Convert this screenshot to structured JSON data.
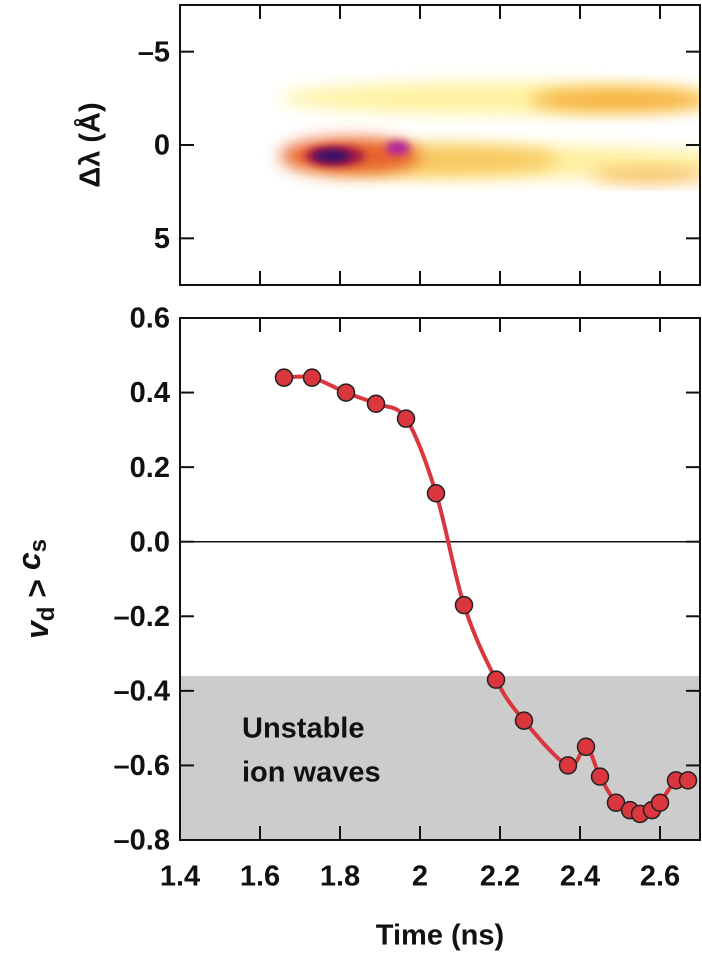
{
  "chart_data": [
    {
      "type": "heatmap",
      "ylabel": "Δλ (Å)",
      "xlim": [
        1.4,
        2.7
      ],
      "xticks": [
        1.4,
        1.6,
        1.8,
        2.0,
        2.2,
        2.4,
        2.6
      ],
      "xtick_labels": false,
      "ylim": [
        -7.5,
        7.5
      ],
      "y_inverted": true,
      "yticks": [
        {
          "value": -5,
          "label": "–5"
        },
        0,
        5
      ]
    },
    {
      "type": "line",
      "xlabel": "Time (ns)",
      "ylabel_parts": [
        "v",
        "d",
        " > ",
        "c",
        "s"
      ],
      "xlim": [
        1.4,
        2.7
      ],
      "xticks": [
        1.4,
        1.6,
        1.8,
        2.0,
        2.2,
        2.4,
        2.6
      ],
      "xtick_labels": true,
      "ylim": [
        -0.8,
        0.6
      ],
      "yticks": [
        {
          "value": -0.8,
          "label": "–0.8"
        },
        {
          "value": -0.6,
          "label": "–0.6"
        },
        {
          "value": -0.4,
          "label": "–0.4"
        },
        {
          "value": -0.2,
          "label": "–0.2"
        },
        {
          "value": 0,
          "label": "0.0"
        },
        0.2,
        0.4,
        0.6
      ],
      "hline": 0,
      "shade": {
        "below": -0.36,
        "color": "#cccccc",
        "label": [
          "Unstable",
          "ion waves"
        ]
      },
      "color": "#d9363e",
      "x": [
        1.66,
        1.73,
        1.815,
        1.89,
        1.965,
        2.04,
        2.11,
        2.19,
        2.26,
        2.37,
        2.415,
        2.45,
        2.49,
        2.525,
        2.55,
        2.58,
        2.6,
        2.64,
        2.67
      ],
      "values": [
        0.44,
        0.44,
        0.4,
        0.37,
        0.33,
        0.13,
        -0.17,
        -0.37,
        -0.48,
        -0.6,
        -0.55,
        -0.63,
        -0.7,
        -0.72,
        -0.73,
        -0.72,
        -0.7,
        -0.64,
        -0.64
      ]
    }
  ]
}
